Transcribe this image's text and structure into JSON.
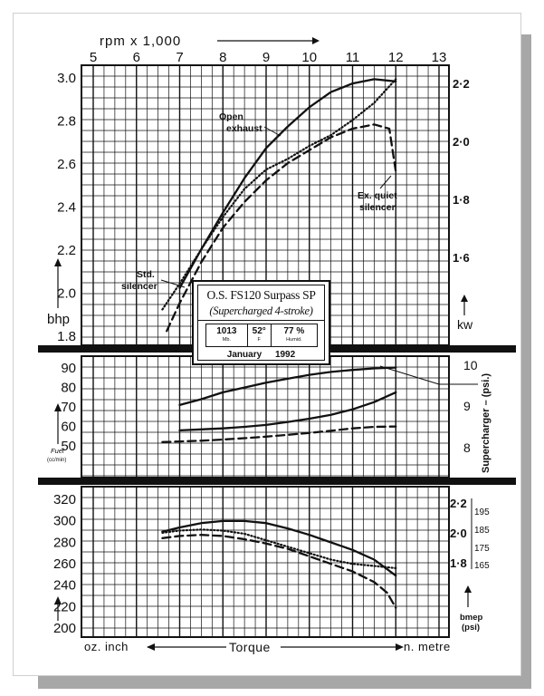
{
  "chart_data": [
    {
      "type": "line",
      "panel": "power",
      "x_axis_label": "rpm x 1,000",
      "x_ticks": [
        "5",
        "6",
        "7",
        "8",
        "9",
        "10",
        "11",
        "12",
        "13"
      ],
      "xlim": [
        5,
        13
      ],
      "ylabel": "bhp",
      "y_ticks": [
        "1.8",
        "2.0",
        "2.2",
        "2.4",
        "2.6",
        "2.8",
        "3.0"
      ],
      "ylim": [
        1.75,
        3.0
      ],
      "right_axis_label": "kw",
      "right_ticks": [
        "1·6",
        "1·8",
        "2·0",
        "2·2"
      ],
      "series": [
        {
          "name": "Open exhaust",
          "style": "solid",
          "x": [
            7.0,
            7.5,
            8.0,
            8.5,
            9.0,
            9.5,
            10.0,
            10.5,
            11.0,
            11.5,
            12.0
          ],
          "y": [
            2.02,
            2.2,
            2.37,
            2.53,
            2.67,
            2.77,
            2.86,
            2.93,
            2.97,
            2.99,
            2.98
          ]
        },
        {
          "name": "Std. silencer",
          "style": "dotted",
          "x": [
            6.6,
            7.0,
            7.5,
            8.0,
            8.5,
            9.0,
            9.5,
            10.0,
            10.5,
            11.0,
            11.5,
            12.0
          ],
          "y": [
            1.92,
            2.04,
            2.2,
            2.35,
            2.48,
            2.57,
            2.62,
            2.68,
            2.73,
            2.8,
            2.88,
            2.99
          ]
        },
        {
          "name": "Ex. quiet silencer",
          "style": "dashed",
          "x": [
            6.7,
            7.0,
            7.5,
            8.0,
            8.5,
            9.0,
            9.5,
            10.0,
            10.5,
            11.0,
            11.5,
            11.85,
            12.0
          ],
          "y": [
            1.82,
            1.95,
            2.14,
            2.3,
            2.42,
            2.52,
            2.6,
            2.66,
            2.72,
            2.76,
            2.78,
            2.76,
            2.56
          ]
        }
      ]
    },
    {
      "type": "line",
      "panel": "fuel and supercharger",
      "ylabel": "Fuel (cc/min)",
      "y_ticks": [
        "50",
        "60",
        "70",
        "80",
        "90"
      ],
      "ylim": [
        45,
        95
      ],
      "right_axis_label": "Supercharger – (psi.)",
      "right_ticks": [
        "8",
        "9",
        "10"
      ],
      "series": [
        {
          "style": "solid",
          "x": [
            7.0,
            7.5,
            8.0,
            8.5,
            9.0,
            9.5,
            10.0,
            10.5,
            11.0,
            11.5,
            12.0
          ],
          "y": [
            70.5,
            73.5,
            77,
            79.5,
            82,
            84,
            86,
            87.5,
            88.5,
            89.3,
            89.7
          ]
        },
        {
          "style": "solid",
          "x": [
            7.0,
            7.5,
            8.0,
            8.5,
            9.0,
            9.5,
            10.0,
            10.5,
            11.0,
            11.5,
            12.0
          ],
          "y": [
            57.5,
            58,
            58.5,
            59.3,
            60.3,
            61.8,
            63.5,
            65.5,
            68.3,
            72,
            77
          ]
        },
        {
          "style": "dashed",
          "x": [
            6.6,
            7.0,
            7.5,
            8.0,
            8.5,
            9.0,
            9.5,
            10.0,
            10.5,
            11.0,
            11.5,
            12.0
          ],
          "y": [
            51.5,
            51.8,
            52.2,
            52.8,
            53.5,
            54.3,
            55.2,
            56.2,
            57.3,
            58.5,
            59.3,
            59.5
          ]
        }
      ]
    },
    {
      "type": "line",
      "panel": "torque",
      "ylabel": "",
      "y_ticks": [
        "200",
        "220",
        "240",
        "260",
        "280",
        "300",
        "320"
      ],
      "ylim": [
        195,
        325
      ],
      "right_ticks": [
        "2·2",
        "2·0",
        "1·8"
      ],
      "right_ticks_2": [
        "195",
        "185",
        "175",
        "165"
      ],
      "right_axis_label": "bmep (psi)",
      "bottom_left_label": "oz. inch",
      "bottom_center_label": "Torque",
      "bottom_right_label": "n. metre",
      "series": [
        {
          "style": "solid",
          "x": [
            6.6,
            7.0,
            7.5,
            8.0,
            8.5,
            9.0,
            9.5,
            10.0,
            10.5,
            11.0,
            11.5,
            12.0
          ],
          "y": [
            289,
            293,
            297,
            299,
            299,
            297,
            292,
            286,
            279,
            272,
            263,
            248
          ]
        },
        {
          "style": "dotted",
          "x": [
            6.6,
            7.0,
            7.5,
            8.0,
            8.5,
            9.0,
            9.5,
            10.0,
            10.5,
            11.0,
            11.5,
            12.0
          ],
          "y": [
            288,
            290,
            291,
            290,
            287,
            281,
            275,
            269,
            263,
            259,
            257,
            255
          ]
        },
        {
          "style": "dashed",
          "x": [
            6.6,
            7.0,
            7.5,
            8.0,
            8.5,
            9.0,
            9.5,
            10.0,
            10.5,
            11.0,
            11.5,
            11.8,
            12.0
          ],
          "y": [
            283,
            285,
            286,
            285,
            282,
            278,
            273,
            266,
            259,
            252,
            242,
            232,
            218
          ]
        }
      ]
    }
  ],
  "annotations": {
    "open_exhaust": [
      "Open",
      "exhaust"
    ],
    "std_silencer": [
      "Std.",
      "silencer"
    ],
    "ex_quiet_silencer": [
      "Ex. quiet",
      "silencer"
    ]
  },
  "caption": {
    "title": "O.S. FS120 Surpass SP",
    "subtitle": "(Supercharged 4-stroke)",
    "cells": [
      {
        "value": "1013",
        "unit": "Mb."
      },
      {
        "value": "52°",
        "unit": "F"
      },
      {
        "value": "77 %",
        "unit": "Humid."
      }
    ],
    "date_month": "January",
    "date_year": "1992"
  },
  "colors": {
    "ink": "#111111",
    "shadow": "#a7a7a7",
    "paper": "#ffffff"
  }
}
